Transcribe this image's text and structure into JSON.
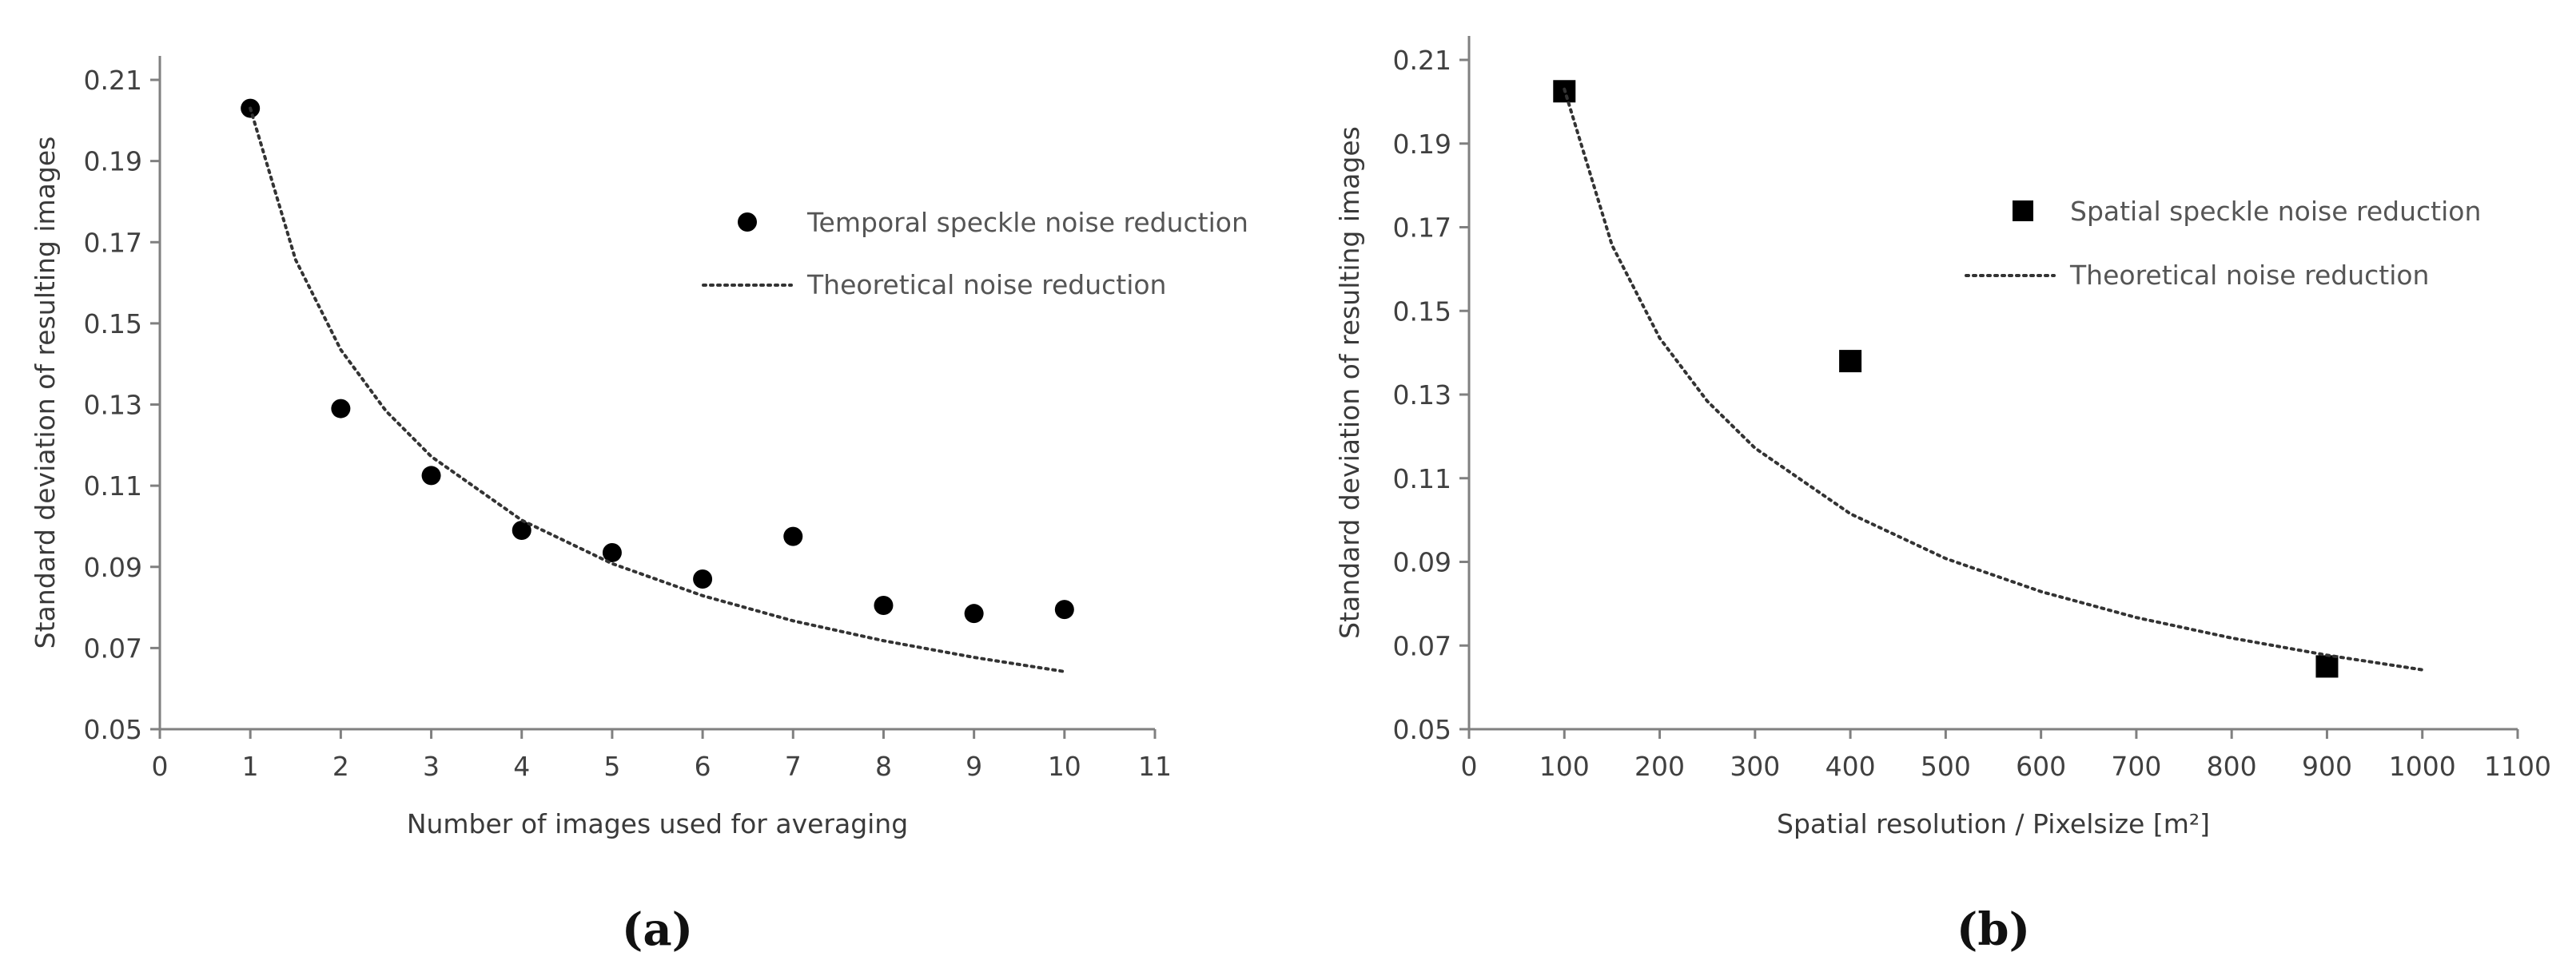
{
  "colors": {
    "axis": "#808080",
    "marker": "#000000",
    "curve": "#333333",
    "text": "#404040"
  },
  "chart_data": [
    {
      "type": "scatter",
      "panel_label": "(a)",
      "title": "",
      "xlabel": "Number of images used for averaging",
      "ylabel": "Standard deviation of resulting images",
      "xlim": [
        0,
        11
      ],
      "ylim": [
        0.05,
        0.21
      ],
      "xticks": [
        "0",
        "1",
        "2",
        "3",
        "4",
        "5",
        "6",
        "7",
        "8",
        "9",
        "10",
        "11"
      ],
      "yticks": [
        "0.05",
        "0.07",
        "0.09",
        "0.11",
        "0.13",
        "0.15",
        "0.17",
        "0.19",
        "0.21"
      ],
      "grid": false,
      "legend_position": "top-right",
      "series": [
        {
          "name": "Temporal speckle noise reduction",
          "kind": "markers",
          "marker": "circle",
          "x": [
            1,
            2,
            3,
            4,
            5,
            6,
            7,
            8,
            9,
            10
          ],
          "y": [
            0.203,
            0.129,
            0.1125,
            0.099,
            0.0935,
            0.087,
            0.0975,
            0.0805,
            0.0785,
            0.0795
          ]
        },
        {
          "name": "Theoretical noise reduction",
          "kind": "dotted-line",
          "curve": "y = 0.203 / sqrt(x)",
          "x": [
            1,
            1.5,
            2,
            2.5,
            3,
            4,
            5,
            6,
            7,
            8,
            9,
            10
          ],
          "y": [
            0.203,
            0.1657,
            0.1435,
            0.1284,
            0.1172,
            0.1015,
            0.0908,
            0.0829,
            0.0767,
            0.0718,
            0.0677,
            0.0642
          ]
        }
      ]
    },
    {
      "type": "scatter",
      "panel_label": "(b)",
      "title": "",
      "xlabel": "Spatial resolution / Pixelsize [m²]",
      "ylabel": "Standard deviation of resulting images",
      "xlim": [
        0,
        1100
      ],
      "ylim": [
        0.05,
        0.21
      ],
      "xticks": [
        "0",
        "100",
        "200",
        "300",
        "400",
        "500",
        "600",
        "700",
        "800",
        "900",
        "1000",
        "1100"
      ],
      "yticks": [
        "0.05",
        "0.07",
        "0.09",
        "0.11",
        "0.13",
        "0.15",
        "0.17",
        "0.19",
        "0.21"
      ],
      "grid": false,
      "legend_position": "top-right",
      "series": [
        {
          "name": "Spatial speckle noise reduction",
          "kind": "markers",
          "marker": "square",
          "x": [
            100,
            400,
            900
          ],
          "y": [
            0.2025,
            0.138,
            0.065
          ]
        },
        {
          "name": "Theoretical noise reduction",
          "kind": "dotted-line",
          "curve": "y = 0.203 / sqrt(x / 100)",
          "x": [
            100,
            150,
            200,
            250,
            300,
            400,
            500,
            600,
            700,
            800,
            900,
            1000
          ],
          "y": [
            0.203,
            0.1657,
            0.1435,
            0.1284,
            0.1172,
            0.1015,
            0.0908,
            0.0829,
            0.0767,
            0.0718,
            0.0677,
            0.0642
          ]
        }
      ]
    }
  ]
}
